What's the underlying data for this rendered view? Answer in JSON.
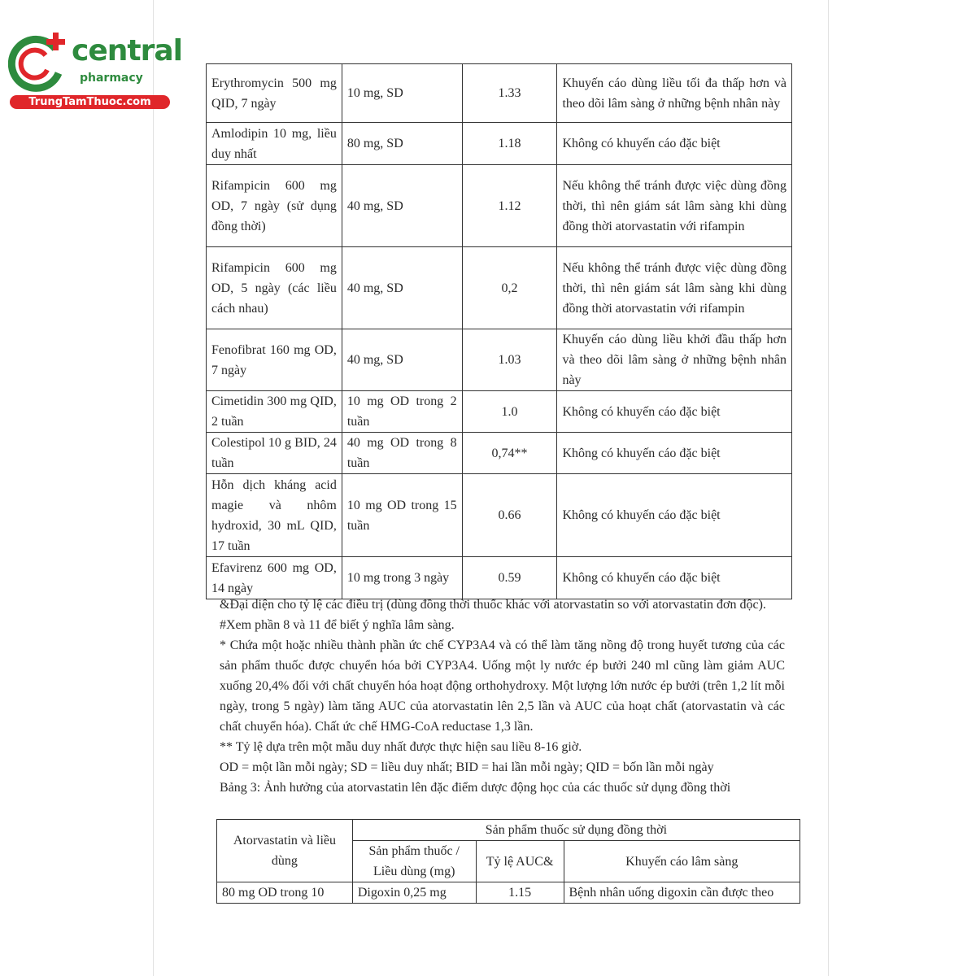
{
  "logo": {
    "brand": "central",
    "sub": "pharmacy",
    "site": "TrungTamThuoc.com",
    "colors": {
      "green": "#2e8b3e",
      "red": "#e0262a"
    }
  },
  "table1": {
    "rows": [
      {
        "drug": "Erythromycin 500 mg QID, 7 ngày",
        "dose": "10 mg, SD",
        "ratio": "1.33",
        "rec": "Khuyến cáo dùng liều tối đa thấp hơn và theo dõi lâm sàng ở những bệnh nhân này"
      },
      {
        "drug": "Amlodipin 10 mg, liều duy nhất",
        "dose": "80 mg, SD",
        "ratio": "1.18",
        "rec": "Không có khuyến cáo đặc biệt"
      },
      {
        "drug": "Rifampicin 600 mg OD, 7 ngày (sử dụng đồng thời)",
        "dose": "40 mg, SD",
        "ratio": "1.12",
        "rec": "Nếu không thể tránh được việc dùng đồng thời, thì nên giám sát lâm sàng khi dùng đồng thời atorvastatin với rifampin"
      },
      {
        "drug": "Rifampicin 600 mg OD, 5 ngày (các liều cách nhau)",
        "dose": "40 mg, SD",
        "ratio": "0,2",
        "rec": "Nếu không thể tránh được việc dùng đồng thời, thì nên giám sát lâm sàng khi dùng đồng thời atorvastatin với rifampin"
      },
      {
        "drug": "Fenofibrat 160 mg OD, 7 ngày",
        "dose": "40 mg, SD",
        "ratio": "1.03",
        "rec": "Khuyến cáo dùng liều khởi đầu thấp hơn và theo dõi lâm sàng ở những bệnh nhân này"
      },
      {
        "drug": "Cimetidin 300 mg QID, 2 tuần",
        "dose": "10 mg OD trong 2 tuần",
        "ratio": "1.0",
        "rec": "Không có khuyến cáo đặc biệt"
      },
      {
        "drug": "Colestipol 10 g BID, 24 tuần",
        "dose": "40 mg OD trong 8 tuần",
        "ratio": "0,74**",
        "rec": "Không có khuyến cáo đặc biệt"
      },
      {
        "drug": "Hỗn dịch kháng acid magie và nhôm hydroxid, 30 mL QID, 17 tuần",
        "dose": "10 mg OD trong 15 tuần",
        "ratio": "0.66",
        "rec": "Không có khuyến cáo đặc biệt"
      },
      {
        "drug": "Efavirenz 600 mg OD, 14 ngày",
        "dose": "10 mg trong 3 ngày",
        "ratio": "0.59",
        "rec": "Không có khuyến cáo đặc biệt"
      }
    ]
  },
  "notes": [
    "&Đại diện cho tỷ lệ các điều trị (dùng đồng thời thuốc khác với atorvastatin so với atorvastatin đơn độc).",
    "#Xem phần 8 và 11 để biết ý nghĩa lâm sàng.",
    "* Chứa một hoặc nhiều thành phần ức chế CYP3A4 và có thể làm tăng nồng độ trong huyết tương của các sản phẩm thuốc được chuyển hóa bởi CYP3A4. Uống một ly nước ép bưởi 240 ml cũng làm giảm AUC xuống 20,4% đối với chất chuyển hóa hoạt động orthohydroxy. Một lượng lớn nước ép bưởi (trên 1,2 lít mỗi ngày, trong 5 ngày) làm tăng AUC của atorvastatin lên 2,5 lần và AUC của hoạt chất (atorvastatin và các chất chuyển hóa). Chất ức chế HMG-CoA reductase 1,3 lần.",
    "** Tỷ lệ dựa trên một mẫu duy nhất được thực hiện sau liều 8-16 giờ.",
    "OD = một lần mỗi ngày; SD = liều duy nhất; BID = hai lần mỗi ngày; QID = bốn lần mỗi ngày",
    "Bảng 3: Ảnh hưởng của atorvastatin lên đặc điểm dược động học của các thuốc sử dụng đồng thời"
  ],
  "table2": {
    "h_atorva": "Atorvastatin và liều dùng",
    "h_group": "Sản phẩm thuốc sử dụng đồng thời",
    "h_product": "Sản phẩm thuốc / Liều dùng (mg)",
    "h_ratio": "Tỷ lệ AUC&",
    "h_rec": "Khuyến cáo lâm sàng",
    "row": {
      "atorva": "80 mg OD trong 10",
      "product": "Digoxin 0,25 mg",
      "ratio": "1.15",
      "rec": "Bệnh nhân uống digoxin cần được theo"
    }
  }
}
